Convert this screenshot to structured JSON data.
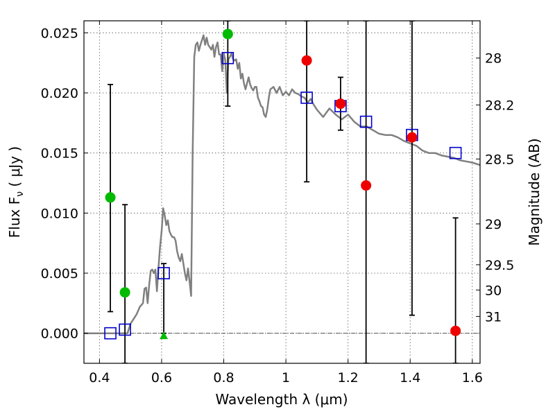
{
  "chart_data": {
    "type": "scatter",
    "xlabel": "Wavelength  λ (μm)",
    "ylabel": "Flux  F",
    "ylabel_sub": "ν",
    "ylabel_unit": "  ( μJy )",
    "ylabel_right": "Magnitude (AB)",
    "xlim": [
      0.35,
      1.625
    ],
    "ylim": [
      -0.0025,
      0.026
    ],
    "xticks": [
      {
        "v": 0.4,
        "label": "0.4"
      },
      {
        "v": 0.6,
        "label": "0.6"
      },
      {
        "v": 0.8,
        "label": "0.8"
      },
      {
        "v": 1.0,
        "label": "1"
      },
      {
        "v": 1.2,
        "label": "1.2"
      },
      {
        "v": 1.4,
        "label": "1.4"
      },
      {
        "v": 1.6,
        "label": "1.6"
      }
    ],
    "yticks": [
      {
        "v": 0.0,
        "label": "0.000"
      },
      {
        "v": 0.005,
        "label": "0.005"
      },
      {
        "v": 0.01,
        "label": "0.010"
      },
      {
        "v": 0.015,
        "label": "0.015"
      },
      {
        "v": 0.02,
        "label": "0.020"
      },
      {
        "v": 0.025,
        "label": "0.025"
      }
    ],
    "mag_ticks": [
      {
        "flux": 0.0229,
        "label": "28"
      },
      {
        "flux": 0.019,
        "label": "28.2"
      },
      {
        "flux": 0.0145,
        "label": "28.5"
      },
      {
        "flux": 0.0091,
        "label": "29"
      },
      {
        "flux": 0.0057,
        "label": "29.5"
      },
      {
        "flux": 0.0036,
        "label": "30"
      },
      {
        "flux": 0.0014,
        "label": "31"
      }
    ],
    "template_sed": {
      "color": "#808080",
      "x": [
        0.35,
        0.45,
        0.49,
        0.5,
        0.51,
        0.52,
        0.53,
        0.54,
        0.545,
        0.55,
        0.555,
        0.56,
        0.565,
        0.57,
        0.575,
        0.58,
        0.585,
        0.59,
        0.595,
        0.6,
        0.605,
        0.61,
        0.615,
        0.62,
        0.625,
        0.63,
        0.635,
        0.64,
        0.645,
        0.65,
        0.655,
        0.66,
        0.665,
        0.67,
        0.675,
        0.68,
        0.685,
        0.69,
        0.695,
        0.7,
        0.705,
        0.71,
        0.715,
        0.72,
        0.725,
        0.73,
        0.735,
        0.74,
        0.745,
        0.75,
        0.755,
        0.76,
        0.765,
        0.77,
        0.775,
        0.78,
        0.785,
        0.79,
        0.795,
        0.8,
        0.805,
        0.81,
        0.815,
        0.82,
        0.825,
        0.83,
        0.835,
        0.84,
        0.845,
        0.85,
        0.855,
        0.86,
        0.865,
        0.87,
        0.875,
        0.88,
        0.885,
        0.89,
        0.895,
        0.9,
        0.905,
        0.91,
        0.915,
        0.92,
        0.925,
        0.93,
        0.935,
        0.94,
        0.945,
        0.95,
        0.96,
        0.97,
        0.98,
        0.99,
        1.0,
        1.01,
        1.02,
        1.03,
        1.04,
        1.05,
        1.06,
        1.07,
        1.08,
        1.09,
        1.1,
        1.12,
        1.14,
        1.16,
        1.18,
        1.2,
        1.22,
        1.24,
        1.26,
        1.28,
        1.3,
        1.32,
        1.34,
        1.36,
        1.38,
        1.4,
        1.42,
        1.44,
        1.46,
        1.48,
        1.5,
        1.52,
        1.54,
        1.56,
        1.58,
        1.6,
        1.625
      ],
      "y": [
        0.0,
        0.0,
        0.0,
        0.0008,
        0.0012,
        0.0016,
        0.0022,
        0.0025,
        0.0037,
        0.0038,
        0.0025,
        0.004,
        0.0052,
        0.0053,
        0.005,
        0.0053,
        0.0035,
        0.0055,
        0.0072,
        0.0085,
        0.0104,
        0.0098,
        0.009,
        0.0094,
        0.0085,
        0.0082,
        0.008,
        0.008,
        0.0077,
        0.0068,
        0.0063,
        0.006,
        0.0066,
        0.0058,
        0.005,
        0.0044,
        0.0054,
        0.0043,
        0.0031,
        0.015,
        0.023,
        0.024,
        0.0242,
        0.0235,
        0.024,
        0.0244,
        0.0248,
        0.024,
        0.0246,
        0.024,
        0.0238,
        0.0236,
        0.024,
        0.023,
        0.0238,
        0.0242,
        0.0232,
        0.0232,
        0.0218,
        0.0233,
        0.0227,
        0.02,
        0.0228,
        0.023,
        0.0233,
        0.0228,
        0.0227,
        0.0228,
        0.022,
        0.0225,
        0.0212,
        0.0216,
        0.0208,
        0.0203,
        0.0208,
        0.0213,
        0.0207,
        0.0204,
        0.0202,
        0.0205,
        0.0205,
        0.0196,
        0.0193,
        0.0189,
        0.0188,
        0.0182,
        0.018,
        0.0186,
        0.0196,
        0.0203,
        0.0205,
        0.02,
        0.0205,
        0.0198,
        0.0201,
        0.0198,
        0.0203,
        0.02,
        0.0199,
        0.0197,
        0.0196,
        0.0192,
        0.0195,
        0.019,
        0.0186,
        0.018,
        0.0187,
        0.0182,
        0.0178,
        0.0182,
        0.0176,
        0.0172,
        0.0172,
        0.0169,
        0.0166,
        0.0165,
        0.0165,
        0.0163,
        0.016,
        0.0158,
        0.0156,
        0.0152,
        0.015,
        0.015,
        0.0148,
        0.0147,
        0.0146,
        0.0144,
        0.0143,
        0.0142,
        0.014
      ]
    },
    "model_points": {
      "marker": "open-square",
      "color": "#0000cc",
      "x": [
        0.435,
        0.482,
        0.607,
        0.813,
        1.067,
        1.176,
        1.258,
        1.406,
        1.546
      ],
      "y": [
        0.0,
        0.0003,
        0.005,
        0.0229,
        0.0196,
        0.0189,
        0.0176,
        0.0165,
        0.015
      ]
    },
    "error_bars": [
      {
        "x": 0.435,
        "low": 0.0018,
        "high": 0.0207
      },
      {
        "x": 0.482,
        "low": -0.0025,
        "high": 0.0107
      },
      {
        "x": 0.607,
        "low": 0.0,
        "high": 0.0058
      },
      {
        "x": 0.813,
        "low": 0.0189,
        "high": 0.026
      },
      {
        "x": 1.067,
        "low": 0.0126,
        "high": 0.026
      },
      {
        "x": 1.176,
        "low": 0.0169,
        "high": 0.0213
      },
      {
        "x": 1.258,
        "low": -0.0025,
        "high": 0.026
      },
      {
        "x": 1.406,
        "low": 0.0015,
        "high": 0.026
      },
      {
        "x": 1.546,
        "low": -0.0025,
        "high": 0.0096
      }
    ],
    "observed_green": {
      "color": "#00bb00",
      "x": [
        0.435,
        0.482,
        0.813
      ],
      "y": [
        0.0113,
        0.0034,
        0.0249
      ]
    },
    "upper_limit_green": {
      "color": "#00bb00",
      "marker": "triangle",
      "x": [
        0.607
      ],
      "y": [
        -0.0002
      ]
    },
    "observed_red": {
      "color": "#ee0000",
      "x": [
        1.067,
        1.176,
        1.258,
        1.406,
        1.546
      ],
      "y": [
        0.0227,
        0.0191,
        0.0123,
        0.0163,
        0.0002
      ]
    },
    "zero_line": 0.0
  }
}
